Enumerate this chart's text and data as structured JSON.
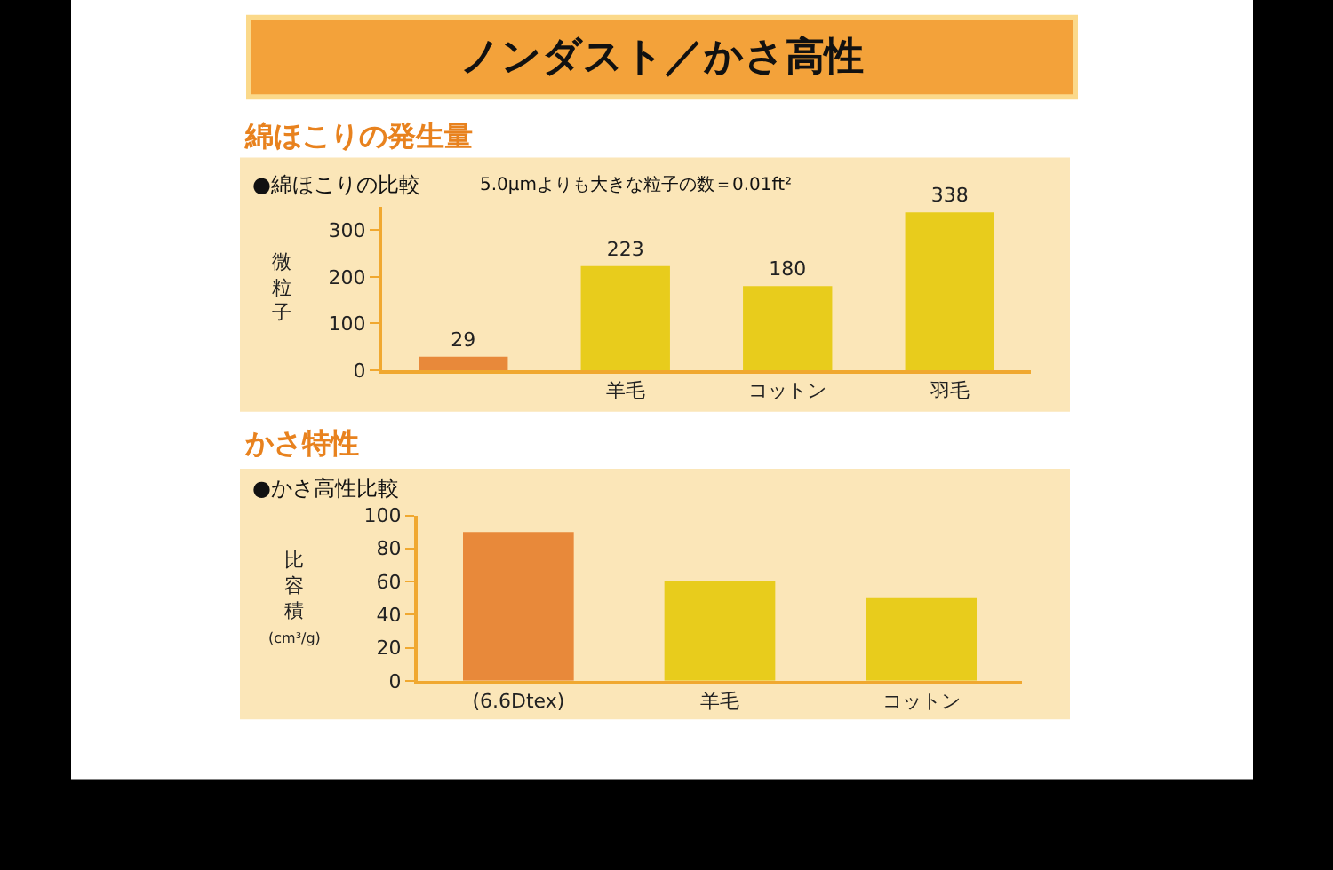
{
  "chart_data": [
    {
      "type": "bar",
      "title": "綿ほこりの発生量",
      "subtitle": "●綿ほこりの比較",
      "ylabel": "微粒子",
      "annotations": [
        "ノンダスト／かさ高性",
        "5.0μmよりも大きな粒子の数＝0.01ft²"
      ],
      "categories": [
        null,
        "羊毛",
        "コットン",
        "羽毛"
      ],
      "values": [
        29,
        223,
        180,
        338
      ],
      "colors": [
        "#e8893a",
        "#e8cc1c",
        "#e8cc1c",
        "#e8cc1c"
      ],
      "ylim": [
        0,
        350
      ],
      "yticks": [
        0,
        100,
        200,
        300
      ],
      "data_labels": true
    },
    {
      "type": "bar",
      "title": "かさ特性",
      "subtitle": "●かさ高性比較",
      "ylabel": "比容積 (cm³/g)",
      "categories": [
        "(6.6Dtex)",
        "羊毛",
        "コットン"
      ],
      "values": [
        90,
        60,
        50
      ],
      "colors": [
        "#e8893a",
        "#e8cc1c",
        "#e8cc1c"
      ],
      "ylim": [
        0,
        100
      ],
      "yticks": [
        0,
        20,
        40,
        60,
        80,
        100
      ]
    }
  ]
}
